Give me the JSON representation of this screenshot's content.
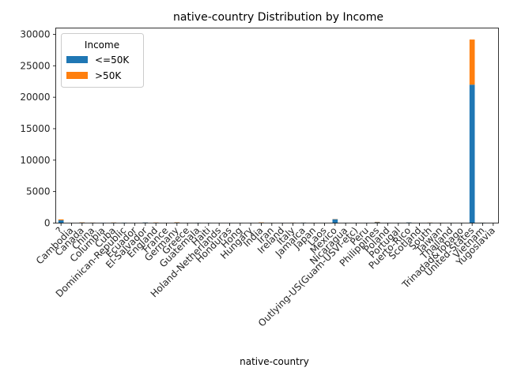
{
  "chart_data": {
    "type": "bar",
    "stacked": true,
    "title": "native-country Distribution by Income",
    "xlabel": "native-country",
    "ylabel": "",
    "ylim": [
      0,
      31000
    ],
    "yticks": [
      0,
      5000,
      10000,
      15000,
      20000,
      25000,
      30000
    ],
    "grid": false,
    "legend": {
      "title": "Income",
      "placement": "top-left"
    },
    "categories": [
      "?",
      "Cambodia",
      "Canada",
      "China",
      "Columbia",
      "Cuba",
      "Dominican-Republic",
      "Ecuador",
      "El-Salvador",
      "England",
      "France",
      "Germany",
      "Greece",
      "Guatemala",
      "Haiti",
      "Holand-Netherlands",
      "Honduras",
      "Hong",
      "Hungary",
      "India",
      "Iran",
      "Ireland",
      "Italy",
      "Jamaica",
      "Japan",
      "Laos",
      "Mexico",
      "Nicaragua",
      "Outlying-US(Guam-USVI-etc)",
      "Peru",
      "Philippines",
      "Poland",
      "Portugal",
      "Puerto-Rico",
      "Scotland",
      "South",
      "Taiwan",
      "Thailand",
      "Trinadad&Tobago",
      "United-States",
      "Vietnam",
      "Yugoslavia"
    ],
    "series": [
      {
        "name": "<=50K",
        "color": "#1f77b4",
        "values": [
          437,
          12,
          82,
          55,
          57,
          70,
          68,
          24,
          97,
          60,
          17,
          93,
          21,
          61,
          40,
          1,
          12,
          14,
          10,
          60,
          25,
          19,
          48,
          71,
          38,
          16,
          610,
          32,
          14,
          29,
          137,
          48,
          33,
          102,
          9,
          64,
          31,
          15,
          17,
          22000,
          62,
          10
        ]
      },
      {
        "name": ">50K",
        "color": "#ff7f0e",
        "values": [
          146,
          7,
          39,
          20,
          2,
          25,
          2,
          4,
          9,
          30,
          12,
          44,
          8,
          3,
          4,
          0,
          1,
          6,
          3,
          40,
          18,
          5,
          25,
          10,
          24,
          2,
          33,
          2,
          0,
          2,
          61,
          12,
          4,
          12,
          3,
          16,
          20,
          3,
          2,
          7171,
          5,
          6
        ]
      }
    ]
  }
}
